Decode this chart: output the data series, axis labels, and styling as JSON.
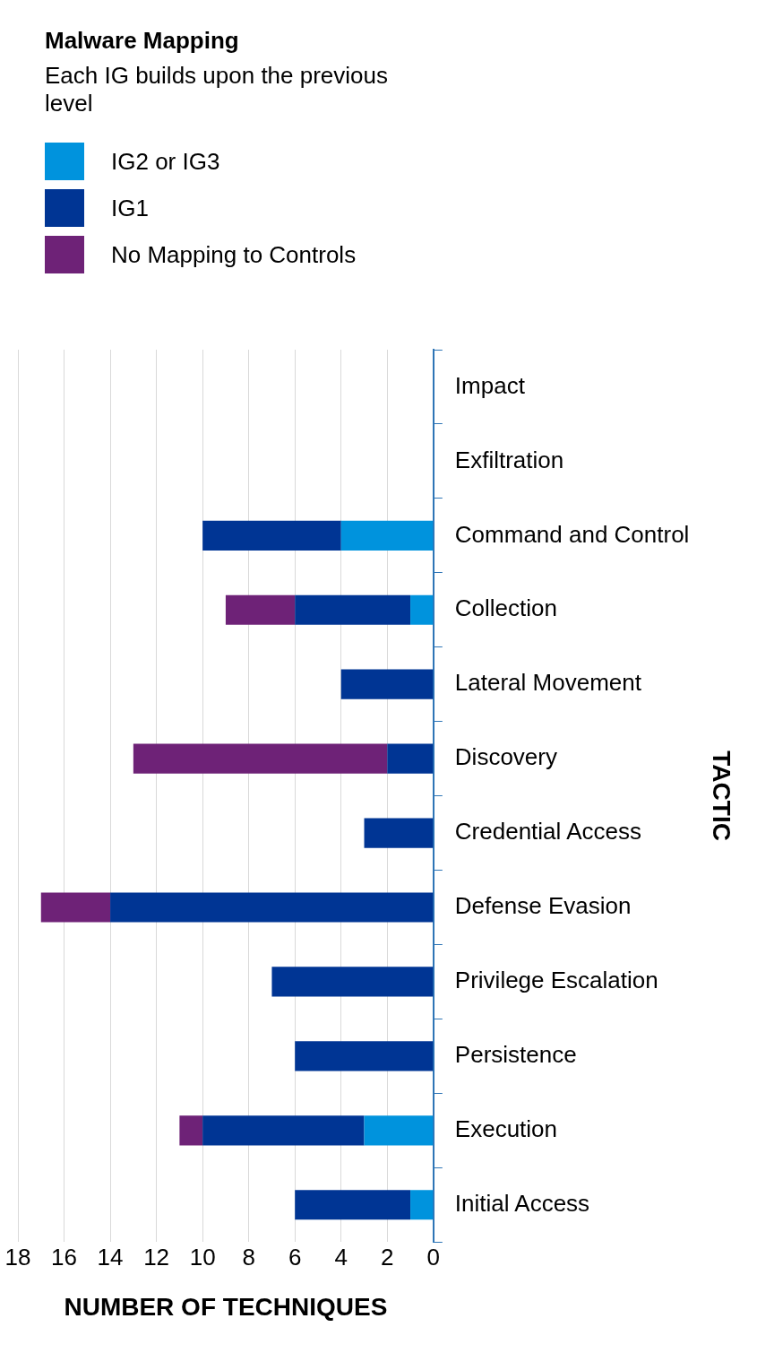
{
  "chart_data": {
    "type": "bar",
    "orientation": "horizontal",
    "stacked": true,
    "legend_title": "Malware Mapping",
    "subtitle": "Each IG builds upon the previous level",
    "xlabel": "NUMBER OF TECHNIQUES",
    "ylabel": "TACTIC",
    "categories": [
      "Impact",
      "Exfiltration",
      "Command and Control",
      "Collection",
      "Lateral Movement",
      "Discovery",
      "Credential Access",
      "Defense Evasion",
      "Privilege Escalation",
      "Persistence",
      "Execution",
      "Initial Access"
    ],
    "series": [
      {
        "name": "IG2 or IG3",
        "color": "#0093dd",
        "values": [
          0,
          0,
          4,
          1,
          0,
          0,
          0,
          0,
          0,
          0,
          3,
          1
        ]
      },
      {
        "name": "IG1",
        "color": "#003594",
        "values": [
          0,
          0,
          6,
          5,
          4,
          2,
          3,
          14,
          7,
          6,
          7,
          5
        ]
      },
      {
        "name": "No Mapping to Controls",
        "color": "#6e2277",
        "values": [
          0,
          0,
          0,
          3,
          0,
          11,
          0,
          3,
          0,
          0,
          1,
          0
        ]
      }
    ],
    "xlim": [
      18,
      0
    ],
    "xticks": [
      18,
      16,
      14,
      12,
      10,
      8,
      6,
      4,
      2,
      0
    ],
    "grid": "x",
    "legend": "top"
  }
}
